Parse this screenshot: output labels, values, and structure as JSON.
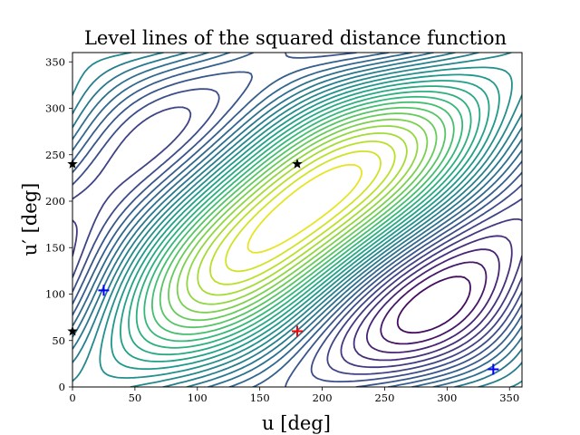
{
  "chart_data": {
    "type": "contour",
    "title": "Level lines of the squared distance function",
    "xlabel": "u [deg]",
    "ylabel": "u′ [deg]",
    "xlim": [
      0,
      360
    ],
    "ylim": [
      0,
      360
    ],
    "xticks": [
      0,
      50,
      100,
      150,
      200,
      250,
      300,
      350
    ],
    "yticks": [
      0,
      50,
      100,
      150,
      200,
      250,
      300,
      350
    ],
    "colormap": "viridis",
    "grid": false,
    "markers": [
      {
        "kind": "plus",
        "color": "#ff0000",
        "points": [
          [
            180,
            60
          ]
        ]
      },
      {
        "kind": "plus",
        "color": "#0000ff",
        "points": [
          [
            25,
            104
          ],
          [
            337,
            19
          ]
        ]
      },
      {
        "kind": "star",
        "color": "#000000",
        "points": [
          [
            180,
            240
          ],
          [
            0,
            240
          ],
          [
            0,
            60
          ]
        ]
      }
    ]
  }
}
